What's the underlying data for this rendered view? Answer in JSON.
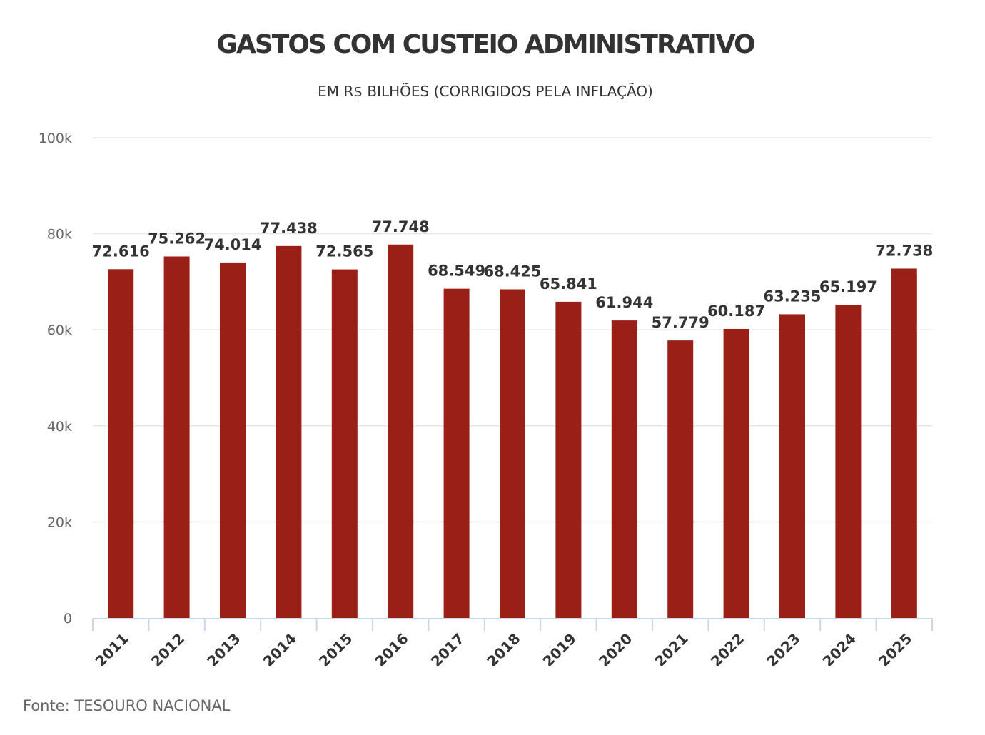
{
  "chart_data": {
    "type": "bar",
    "title": "GASTOS COM CUSTEIO ADMINISTRATIVO",
    "subtitle": "EM R$ BILHÕES (CORRIGIDOS PELA INFLAÇÃO)",
    "xlabel": "",
    "ylabel": "",
    "categories": [
      "2011",
      "2012",
      "2013",
      "2014",
      "2015",
      "2016",
      "2017",
      "2018",
      "2019",
      "2020",
      "2021",
      "2022",
      "2023",
      "2024",
      "2025"
    ],
    "values": [
      72616,
      75262,
      74014,
      77438,
      72565,
      77748,
      68549,
      68425,
      65841,
      61944,
      57779,
      60187,
      63235,
      65197,
      72738
    ],
    "data_labels": [
      "72.616",
      "75.262",
      "74.014",
      "77.438",
      "72.565",
      "77.748",
      "68.549",
      "68.425",
      "65.841",
      "61.944",
      "57.779",
      "60.187",
      "63.235",
      "65.197",
      "72.738"
    ],
    "ylim": [
      0,
      100000
    ],
    "yticks": [
      0,
      20000,
      40000,
      60000,
      80000,
      100000
    ],
    "ytick_labels": [
      "0",
      "20k",
      "40k",
      "60k",
      "80k",
      "100k"
    ],
    "grid": true,
    "legend": "none",
    "bar_color": "#9a1f16"
  },
  "source": "Fonte: TESOURO NACIONAL"
}
